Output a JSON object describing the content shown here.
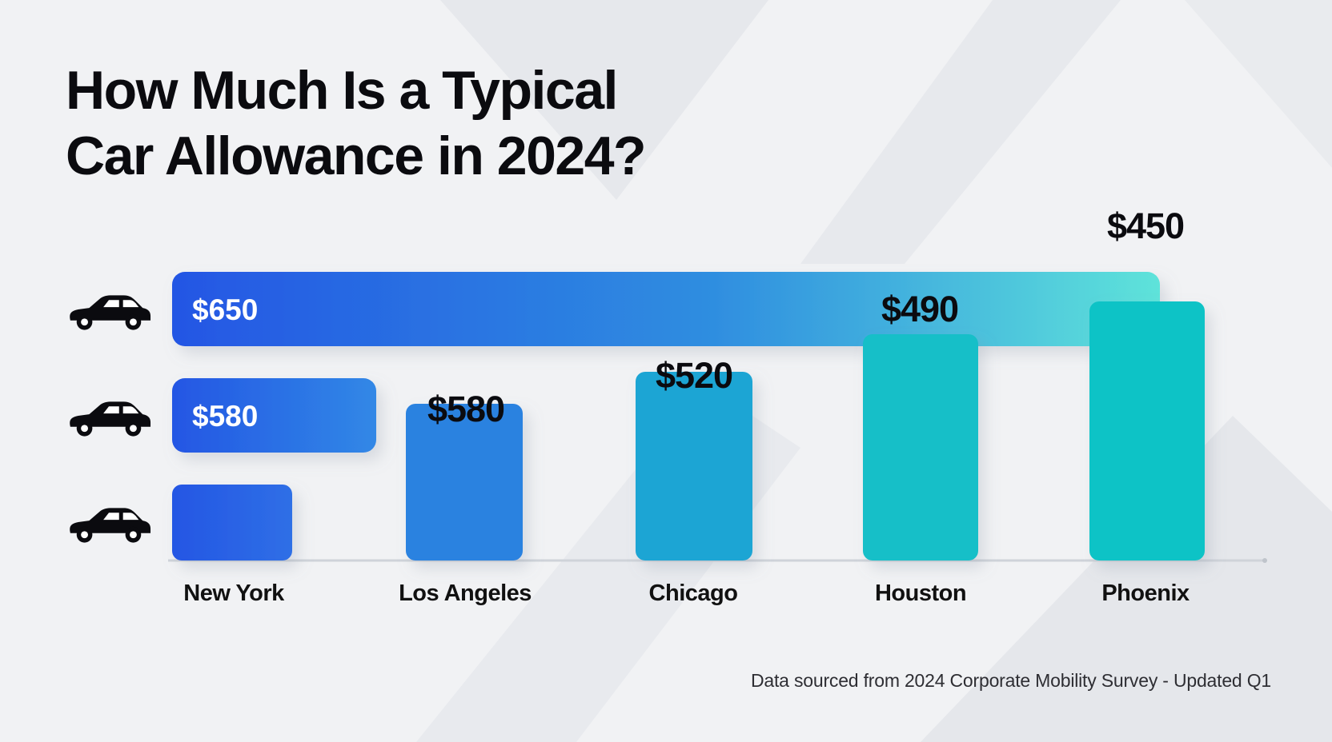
{
  "title": {
    "line1": "How Much Is a Typical",
    "line2": "Car Allowance in 2024?"
  },
  "source": "Data sourced from 2024 Corporate Mobility Survey - Updated Q1",
  "colors": {
    "blue": "#2456e4",
    "mid_blue": "#2a86de",
    "teal": "#12c2c6",
    "light_teal": "#5ee3da",
    "text": "#0b0b0f"
  },
  "icons": [
    "car-icon",
    "car-icon",
    "car-icon"
  ],
  "chart_data": [
    {
      "type": "bar",
      "orientation": "horizontal",
      "values": [
        650,
        580,
        null
      ],
      "labels": [
        "$650",
        "$580",
        ""
      ]
    },
    {
      "type": "bar",
      "orientation": "vertical",
      "categories": [
        "New York",
        "Los Angeles",
        "Chicago",
        "Houston",
        "Phoenix"
      ],
      "values": [
        null,
        580,
        520,
        490,
        450
      ],
      "labels": [
        "",
        "$580",
        "$520",
        "$490",
        "$450"
      ]
    }
  ]
}
